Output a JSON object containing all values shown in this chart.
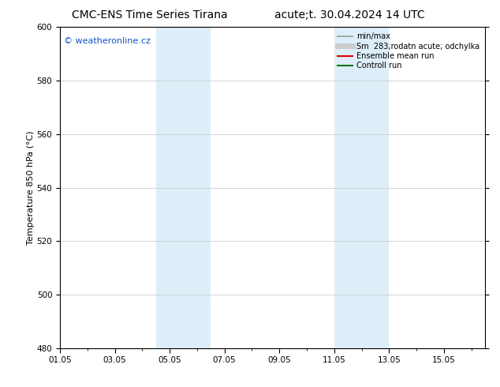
{
  "title_left": "CMC-ENS Time Series Tirana",
  "title_right": "acute;t. 30.04.2024 14 UTC",
  "ylabel": "Temperature 850 hPa (°C)",
  "ylim": [
    480,
    600
  ],
  "yticks": [
    480,
    500,
    520,
    540,
    560,
    580,
    600
  ],
  "xtick_labels": [
    "01.05",
    "03.05",
    "05.05",
    "07.05",
    "09.05",
    "11.05",
    "13.05",
    "15.05"
  ],
  "xtick_positions": [
    0,
    2,
    4,
    6,
    8,
    10,
    12,
    14
  ],
  "xlim": [
    0,
    15.5
  ],
  "shaded_bands": [
    {
      "x_start": 3.5,
      "x_end": 5.5
    },
    {
      "x_start": 10.0,
      "x_end": 12.0
    }
  ],
  "shaded_color": "#ddeef8",
  "grid_color": "#cccccc",
  "background_color": "#ffffff",
  "watermark_text": "© weatheronline.cz",
  "watermark_color": "#1155cc",
  "watermark_fontsize": 8,
  "legend_entries": [
    {
      "label": "min/max",
      "color": "#999999",
      "lw": 1.2
    },
    {
      "label": "Sm  283;rodatn acute; odchylka",
      "color": "#cccccc",
      "lw": 5
    },
    {
      "label": "Ensemble mean run",
      "color": "#dd0000",
      "lw": 1.5
    },
    {
      "label": "Controll run",
      "color": "#007700",
      "lw": 1.5
    }
  ],
  "legend_fontsize": 7,
  "title_fontsize": 10,
  "tick_labelsize": 7.5,
  "ylabel_fontsize": 8
}
